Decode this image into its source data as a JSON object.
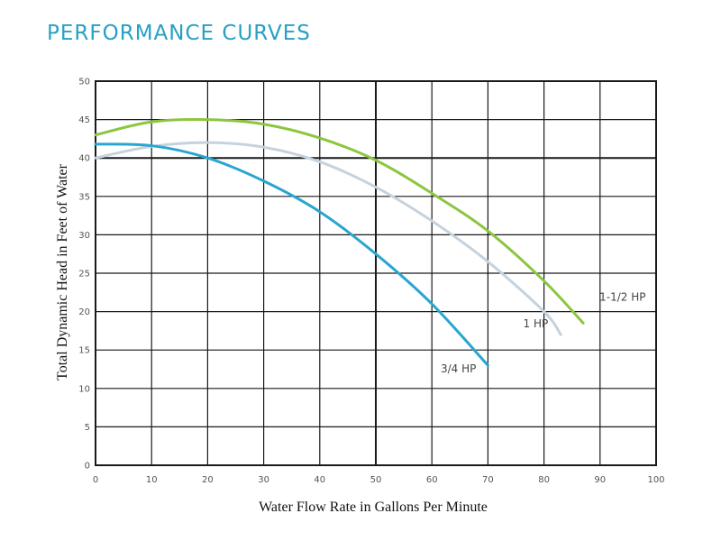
{
  "chart_data": {
    "type": "line",
    "title": "PERFORMANCE CURVES",
    "xlabel": "Water Flow Rate in Gallons Per Minute",
    "ylabel": "Total Dynamic Head in Feet of Water",
    "xlim": [
      0,
      100
    ],
    "ylim": [
      0,
      50
    ],
    "x_ticks": [
      "0",
      "10",
      "20",
      "30",
      "40",
      "50",
      "60",
      "70",
      "80",
      "90",
      "100"
    ],
    "y_ticks": [
      "0",
      "5",
      "10",
      "15",
      "20",
      "25",
      "30",
      "35",
      "40",
      "45",
      "50"
    ],
    "grid": true,
    "series": [
      {
        "name": "1-1/2 HP",
        "color": "#8cc63f",
        "x": [
          0,
          10,
          20,
          30,
          40,
          50,
          60,
          70,
          80,
          87
        ],
        "y": [
          43,
          44.7,
          45,
          44.4,
          42.6,
          39.7,
          35.4,
          30.5,
          24,
          18.5
        ]
      },
      {
        "name": "1 HP",
        "color": "#c5d3de",
        "x": [
          0,
          10,
          20,
          30,
          40,
          50,
          60,
          70,
          80,
          83
        ],
        "y": [
          40,
          41.5,
          42,
          41.4,
          39.5,
          36.2,
          31.8,
          26.5,
          20,
          17
        ]
      },
      {
        "name": "3/4 HP",
        "color": "#29a6cf",
        "x": [
          0,
          10,
          20,
          30,
          40,
          50,
          60,
          70
        ],
        "y": [
          41.8,
          41.6,
          40,
          37,
          33,
          27.5,
          21,
          13
        ]
      }
    ]
  }
}
